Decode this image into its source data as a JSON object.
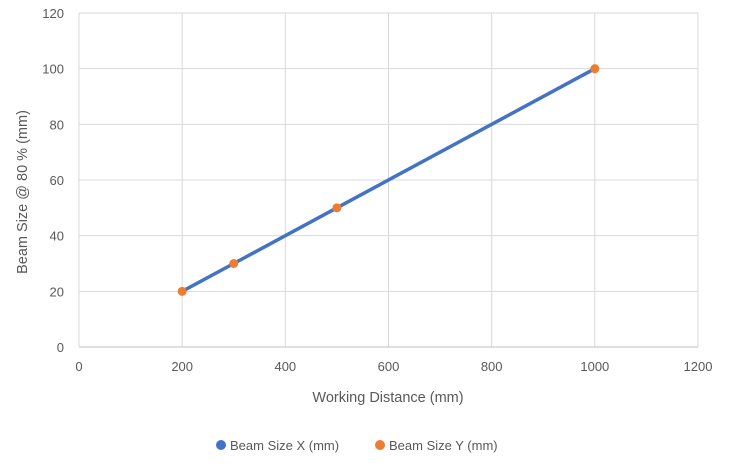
{
  "chart_data": {
    "type": "scatter",
    "title": "",
    "xlabel": "Working Distance (mm)",
    "ylabel": "Beam Size @ 80 % (mm)",
    "xlim": [
      0,
      1200
    ],
    "ylim": [
      0,
      120
    ],
    "x_ticks": [
      "0",
      "200",
      "400",
      "600",
      "800",
      "1000",
      "1200"
    ],
    "y_ticks": [
      "0",
      "20",
      "40",
      "60",
      "80",
      "100",
      "120"
    ],
    "grid": true,
    "legend_position": "bottom",
    "series": [
      {
        "name": "Beam Size X (mm)",
        "color": "#4472C4",
        "style": "line",
        "x": [
          200,
          300,
          500,
          1000
        ],
        "y": [
          20,
          30,
          50,
          100
        ]
      },
      {
        "name": "Beam Size Y (mm)",
        "color": "#ED7D31",
        "style": "markers",
        "x": [
          200,
          300,
          500,
          1000
        ],
        "y": [
          20,
          30,
          50,
          100
        ]
      }
    ]
  }
}
